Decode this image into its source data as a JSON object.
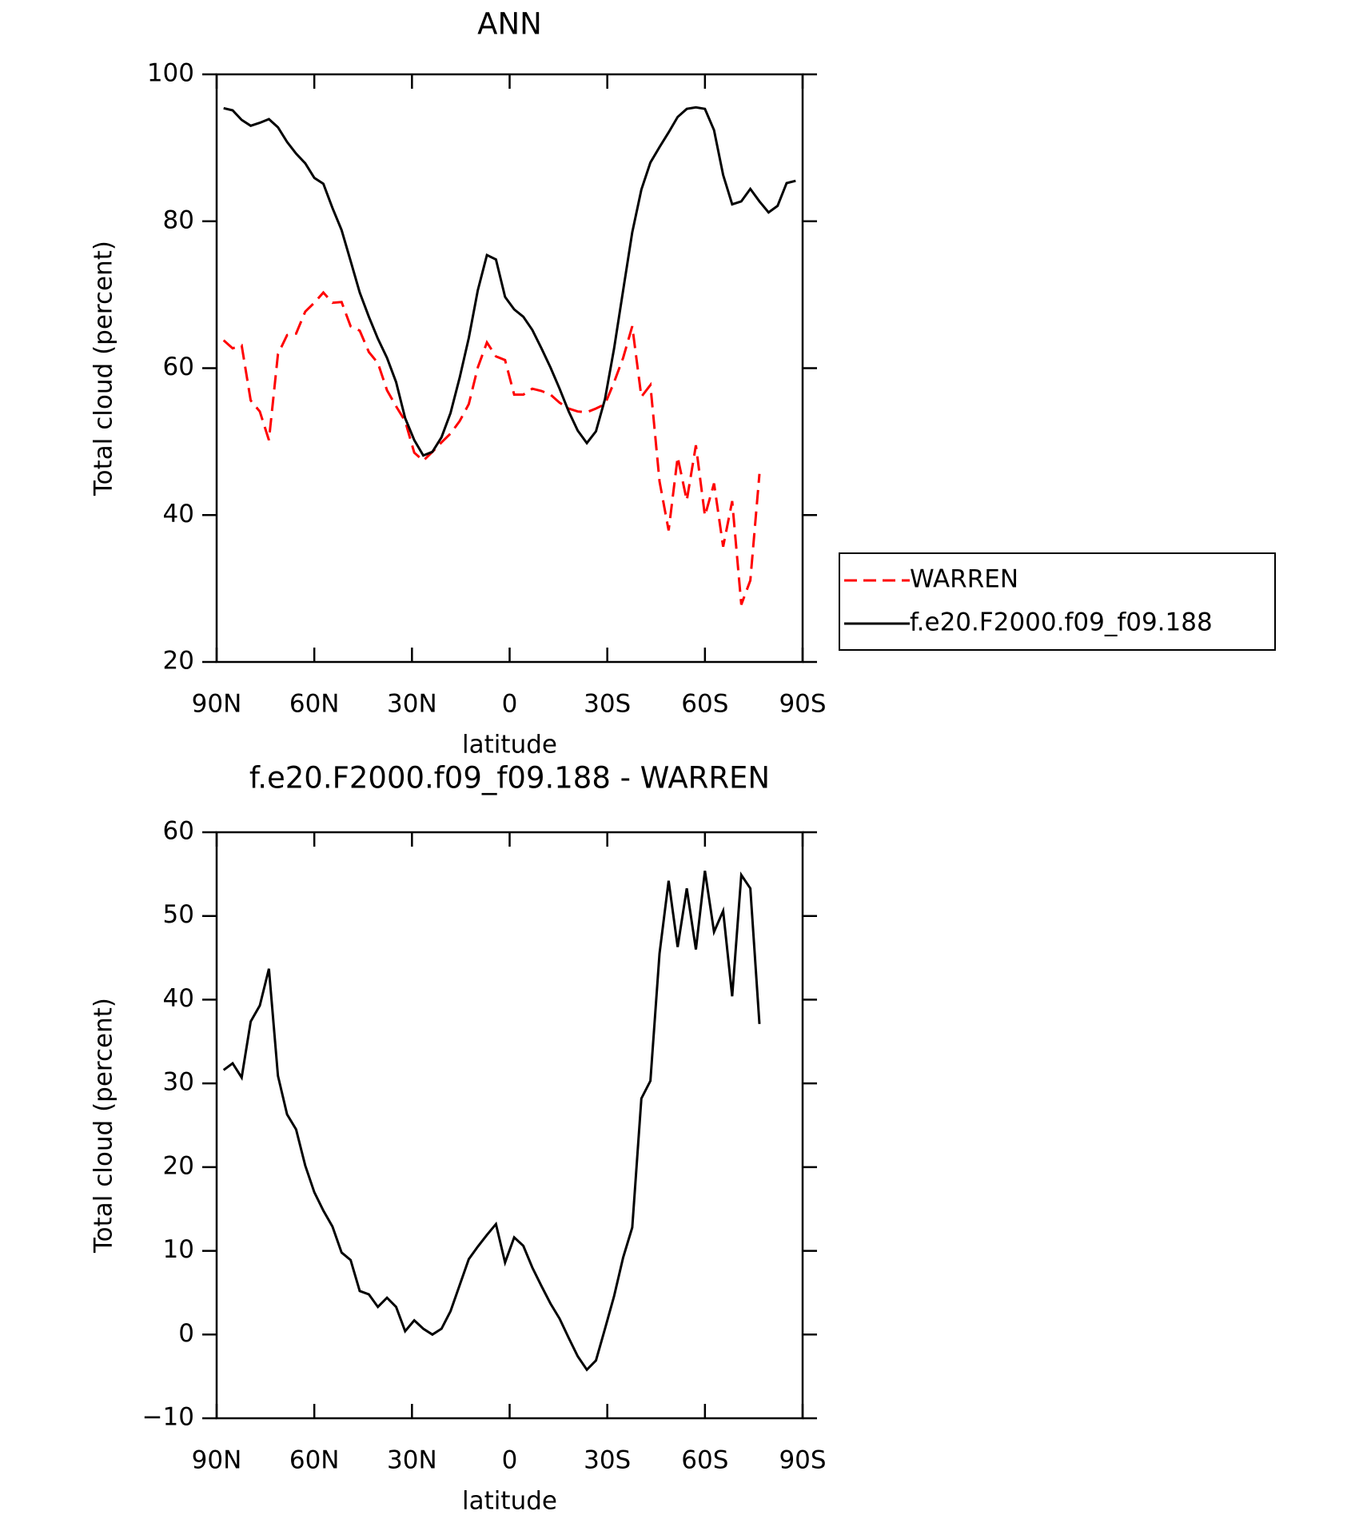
{
  "chart_data": [
    {
      "type": "line",
      "title": "ANN",
      "xlabel": "latitude",
      "ylabel": "Total cloud (percent)",
      "x": [
        87.86,
        85.1,
        82.31,
        79.53,
        76.74,
        73.95,
        71.16,
        68.37,
        65.58,
        62.79,
        60.0,
        57.21,
        54.42,
        51.63,
        48.84,
        46.04,
        43.25,
        40.46,
        37.67,
        34.88,
        32.09,
        29.3,
        26.51,
        23.72,
        20.93,
        18.14,
        15.35,
        12.56,
        9.77,
        6.98,
        4.19,
        1.4,
        -1.4,
        -4.19,
        -6.98,
        -9.77,
        -12.56,
        -15.35,
        -18.14,
        -20.93,
        -23.72,
        -26.51,
        -29.3,
        -32.09,
        -34.88,
        -37.67,
        -40.46,
        -43.25,
        -46.04,
        -48.84,
        -51.63,
        -54.42,
        -57.21,
        -60.0,
        -62.79,
        -65.58,
        -68.37,
        -71.16,
        -73.95,
        -76.74,
        -79.53,
        -82.31,
        -85.1,
        -87.86
      ],
      "xlim": [
        90,
        -90
      ],
      "xticks": [
        {
          "value": 90,
          "label": "90N"
        },
        {
          "value": 60,
          "label": "60N"
        },
        {
          "value": 30,
          "label": "30N"
        },
        0,
        {
          "value": -30,
          "label": "30S"
        },
        {
          "value": -60,
          "label": "60S"
        },
        {
          "value": -90,
          "label": "90S"
        }
      ],
      "ylim": [
        20,
        100
      ],
      "yticks": [
        20,
        40,
        60,
        80,
        100
      ],
      "legend": "right",
      "series": [
        {
          "name": "WARREN",
          "color": "#ff0000",
          "dash": true,
          "values": [
            63.8,
            62.7,
            63.1,
            55.6,
            54.1,
            50.2,
            61.9,
            64.5,
            64.7,
            67.7,
            68.9,
            70.3,
            68.9,
            69.0,
            65.7,
            65.1,
            62.2,
            60.7,
            57.0,
            54.8,
            52.8,
            48.5,
            47.4,
            48.6,
            49.9,
            51.1,
            52.8,
            55.1,
            60.1,
            63.5,
            61.6,
            61.1,
            56.4,
            56.4,
            57.2,
            56.9,
            56.4,
            55.3,
            54.5,
            54.1,
            54.0,
            54.5,
            55.1,
            58.1,
            61.4,
            65.7,
            56.1,
            57.7,
            44.6,
            37.9,
            47.9,
            42.0,
            49.5,
            39.9,
            44.3,
            35.7,
            41.9,
            27.8,
            31.1,
            45.6,
            null,
            null,
            null,
            null
          ]
        },
        {
          "name": "f.e20.F2000.f09_f09.188",
          "color": "#000000",
          "dash": false,
          "values": [
            95.4,
            95.1,
            93.8,
            93.0,
            93.4,
            93.9,
            92.8,
            90.8,
            89.2,
            87.9,
            85.9,
            85.1,
            81.8,
            78.8,
            74.6,
            70.3,
            67.0,
            64.0,
            61.4,
            58.1,
            53.2,
            50.2,
            48.1,
            48.6,
            50.6,
            53.9,
            58.7,
            64.1,
            70.6,
            75.4,
            74.8,
            69.7,
            68.0,
            67.0,
            65.2,
            62.7,
            60.1,
            57.2,
            54.1,
            51.5,
            49.8,
            51.4,
            55.8,
            62.7,
            70.6,
            78.5,
            84.3,
            88.0,
            90.1,
            92.1,
            94.2,
            95.3,
            95.5,
            95.3,
            92.4,
            86.3,
            82.3,
            82.7,
            84.4,
            82.7,
            81.2,
            82.1,
            85.2,
            85.5
          ]
        }
      ]
    },
    {
      "type": "line",
      "title": "f.e20.F2000.f09_f09.188 - WARREN",
      "xlabel": "latitude",
      "ylabel": "Total cloud (percent)",
      "x": [
        87.86,
        85.1,
        82.31,
        79.53,
        76.74,
        73.95,
        71.16,
        68.37,
        65.58,
        62.79,
        60.0,
        57.21,
        54.42,
        51.63,
        48.84,
        46.04,
        43.25,
        40.46,
        37.67,
        34.88,
        32.09,
        29.3,
        26.51,
        23.72,
        20.93,
        18.14,
        15.35,
        12.56,
        9.77,
        6.98,
        4.19,
        1.4,
        -1.4,
        -4.19,
        -6.98,
        -9.77,
        -12.56,
        -15.35,
        -18.14,
        -20.93,
        -23.72,
        -26.51,
        -29.3,
        -32.09,
        -34.88,
        -37.67,
        -40.46,
        -43.25,
        -46.04,
        -48.84,
        -51.63,
        -54.42,
        -57.21,
        -60.0,
        -62.79,
        -65.58,
        -68.37,
        -71.16,
        -73.95,
        -76.74,
        -79.53,
        -82.31,
        -85.1,
        -87.86
      ],
      "xlim": [
        90,
        -90
      ],
      "xticks": [
        {
          "value": 90,
          "label": "90N"
        },
        {
          "value": 60,
          "label": "60N"
        },
        {
          "value": 30,
          "label": "30N"
        },
        0,
        {
          "value": -30,
          "label": "30S"
        },
        {
          "value": -60,
          "label": "60S"
        },
        {
          "value": -90,
          "label": "90S"
        }
      ],
      "ylim": [
        -10,
        60
      ],
      "yticks": [
        {
          "value": -10,
          "label": "−10"
        },
        0,
        10,
        20,
        30,
        40,
        50,
        60
      ],
      "series": [
        {
          "color": "#000000",
          "dash": false,
          "values": [
            31.6,
            32.4,
            30.7,
            37.4,
            39.3,
            43.7,
            30.9,
            26.3,
            24.5,
            20.2,
            17.0,
            14.8,
            12.9,
            9.8,
            8.9,
            5.2,
            4.8,
            3.3,
            4.4,
            3.3,
            0.4,
            1.7,
            0.7,
            0.0,
            0.7,
            2.8,
            5.9,
            9.0,
            10.5,
            11.9,
            13.2,
            8.6,
            11.6,
            10.6,
            8.0,
            5.8,
            3.7,
            1.9,
            -0.4,
            -2.6,
            -4.2,
            -3.1,
            0.7,
            4.6,
            9.2,
            12.8,
            28.2,
            30.3,
            45.5,
            54.2,
            46.3,
            53.3,
            46.0,
            55.4,
            48.1,
            50.6,
            40.4,
            54.9,
            53.3,
            37.1,
            null,
            null,
            null,
            null
          ]
        }
      ]
    }
  ]
}
